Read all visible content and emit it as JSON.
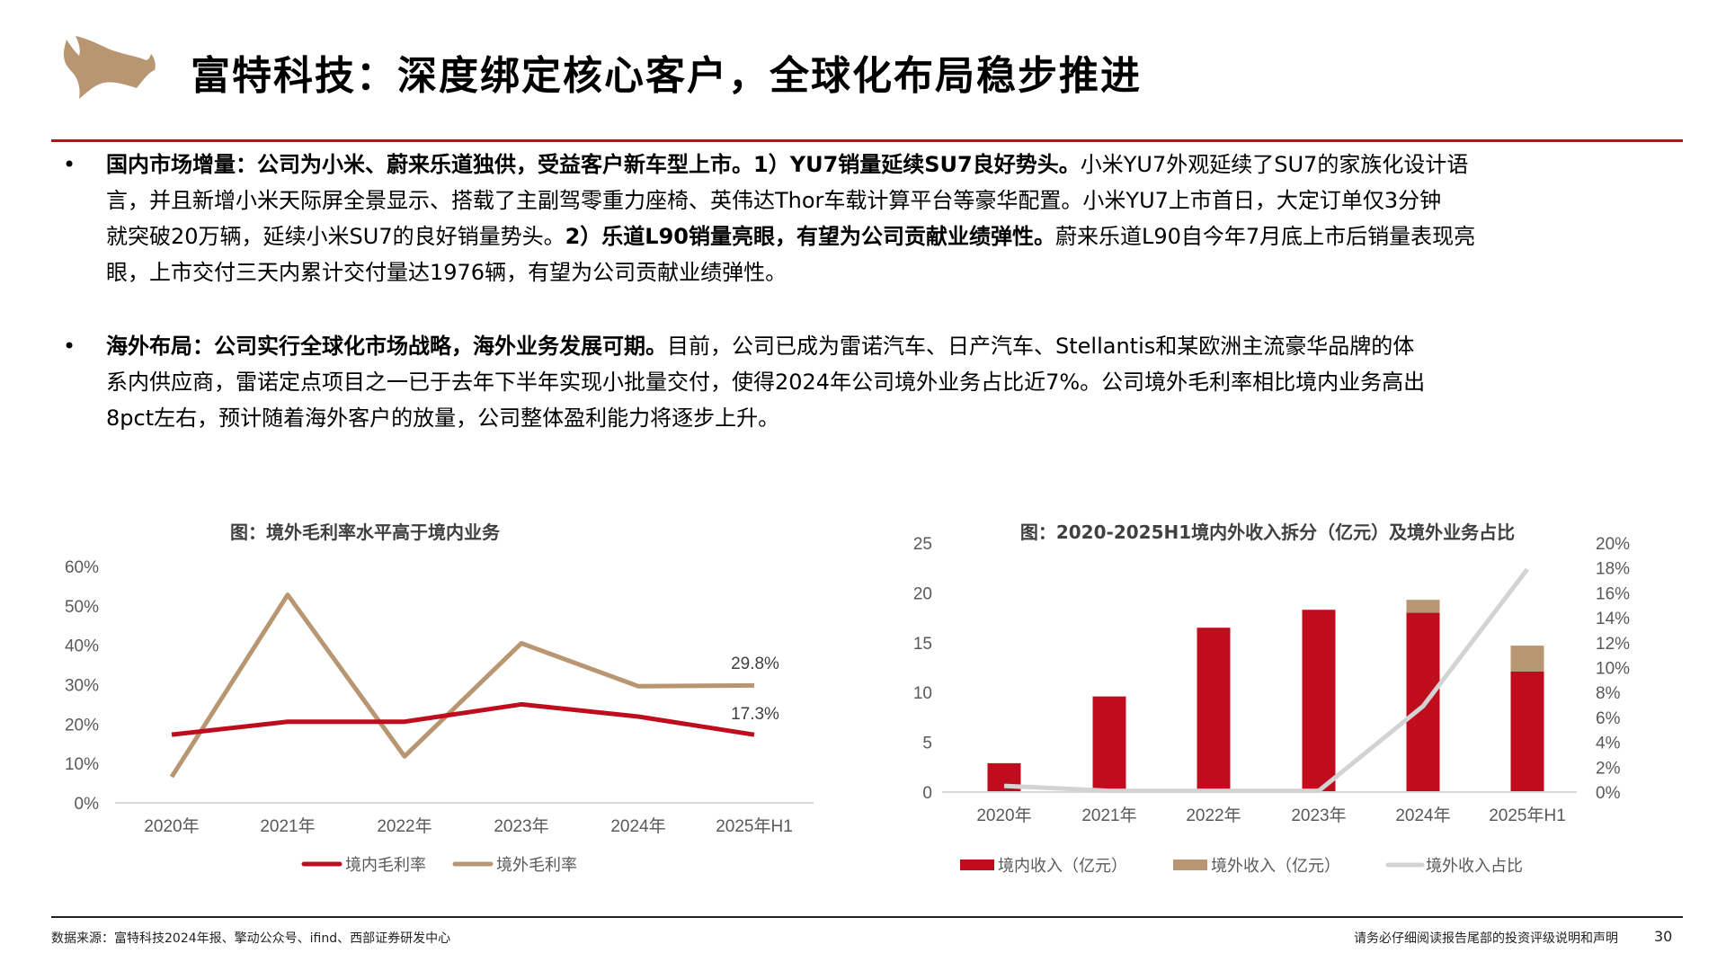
{
  "header": {
    "title": "富特科技：深度绑定核心客户，全球化布局稳步推进",
    "logo": "bull-logo",
    "accent_color": "#C00D1E"
  },
  "bullets": [
    {
      "lines": [
        [
          {
            "text": "国内市场增量：公司为小米、蔚来乐道独供，受益客户新车型上市。1）YU7销量延续SU7良好势头。",
            "bold": true
          },
          {
            "text": "小米YU7外观延续了SU7的家族化设计语",
            "bold": false
          }
        ],
        [
          {
            "text": "言，并且新增小米天际屏全景显示、搭载了主副驾零重力座椅、英伟达Thor车载计算平台等豪华配置。小米YU7上市首日，大定订单仅3分钟",
            "bold": false
          }
        ],
        [
          {
            "text": "就突破20万辆，延续小米SU7的良好销量势头。",
            "bold": false
          },
          {
            "text": "2）乐道L90销量亮眼，有望为公司贡献业绩弹性。",
            "bold": true
          },
          {
            "text": "蔚来乐道L90自今年7月底上市后销量表现亮",
            "bold": false
          }
        ],
        [
          {
            "text": "眼，上市交付三天内累计交付量达1976辆，有望为公司贡献业绩弹性。",
            "bold": false
          }
        ]
      ]
    },
    {
      "lines": [
        [
          {
            "text": "海外布局：公司实行全球化市场战略，海外业务发展可期。",
            "bold": true
          },
          {
            "text": "目前，公司已成为雷诺汽车、日产汽车、Stellantis和某欧洲主流豪华品牌的体",
            "bold": false
          }
        ],
        [
          {
            "text": "系内供应商，雷诺定点项目之一已于去年下半年实现小批量交付，使得2024年公司境外业务占比近7%。公司境外毛利率相比境内业务高出",
            "bold": false
          }
        ],
        [
          {
            "text": "8pct左右，预计随着海外客户的放量，公司整体盈利能力将逐步上升。",
            "bold": false
          }
        ]
      ]
    }
  ],
  "chart_data": [
    {
      "type": "line",
      "title": "图：境外毛利率水平高于境内业务",
      "categories": [
        "2020年",
        "2021年",
        "2022年",
        "2023年",
        "2024年",
        "2025年H1"
      ],
      "ylim": [
        0,
        60
      ],
      "yticks": [
        "0%",
        "10%",
        "20%",
        "30%",
        "40%",
        "50%",
        "60%"
      ],
      "grid": false,
      "legend": "bottom",
      "series": [
        {
          "name": "境内毛利率",
          "color": "#C00D1E",
          "values": [
            17.3,
            20.6,
            20.6,
            25.0,
            21.9,
            17.3
          ],
          "end_label": "17.3%"
        },
        {
          "name": "境外毛利率",
          "color": "#B89672",
          "values": [
            6.6,
            52.8,
            11.8,
            40.5,
            29.6,
            29.8
          ],
          "end_label": "29.8%"
        }
      ]
    },
    {
      "type": "bar",
      "stacked": true,
      "title": "图：2020-2025H1境内外收入拆分（亿元）及境外业务占比",
      "categories": [
        "2020年",
        "2021年",
        "2022年",
        "2023年",
        "2024年",
        "2025年H1"
      ],
      "ylim": [
        0,
        25
      ],
      "yticks": [
        "0",
        "5",
        "10",
        "15",
        "20",
        "25"
      ],
      "y2lim": [
        0,
        20
      ],
      "y2ticks": [
        "0%",
        "2%",
        "4%",
        "6%",
        "8%",
        "10%",
        "12%",
        "14%",
        "16%",
        "18%",
        "20%"
      ],
      "grid": false,
      "legend": "bottom",
      "series": [
        {
          "name": "境内收入（亿元）",
          "type": "bar",
          "color": "#C00D1E",
          "values": [
            2.9,
            9.6,
            16.5,
            18.3,
            18.0,
            12.1
          ]
        },
        {
          "name": "境外收入（亿元）",
          "type": "bar",
          "color": "#B89672",
          "values": [
            0.0,
            0.0,
            0.0,
            0.0,
            1.3,
            2.6
          ]
        },
        {
          "name": "境外收入占比",
          "type": "line",
          "axis": "right",
          "color": "#D3D3D3",
          "values": [
            0.5,
            0.1,
            0.1,
            0.1,
            6.9,
            17.9
          ]
        }
      ]
    }
  ],
  "footer": {
    "source": "数据来源：富特科技2024年报、擎动公众号、ifind、西部证券研发中心",
    "disclaimer": "请务必仔细阅读报告尾部的投资评级说明和声明",
    "page_number": "30"
  }
}
